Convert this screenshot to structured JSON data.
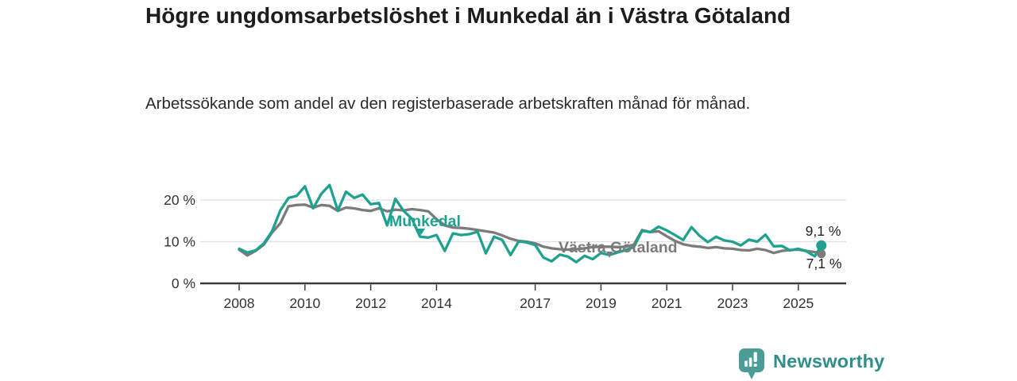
{
  "header": {
    "title": "Högre ungdomsarbetslöshet i Munkedal än i Västra Götaland",
    "subtitle": "Arbetssökande som andel av den registerbaserade arbetskraften månad för månad."
  },
  "footer": {
    "brand": "Newsworthy",
    "logo_icon": "bar-chart-badge-icon"
  },
  "colors": {
    "munkedal": "#1ea18f",
    "vastra_gotaland": "#7b7b7b",
    "grid": "#e0e0e0",
    "axis": "#3b3b3b",
    "tick_text": "#333333",
    "badge": "#4a9c96",
    "wordmark": "#2f8e89"
  },
  "chart_data": {
    "type": "line",
    "x_unit": "decimal_year",
    "ylim": [
      0,
      25
    ],
    "grid": true,
    "y_ticks": [
      "0 %",
      "10 %",
      "20 %"
    ],
    "y_tick_values": [
      0,
      10,
      20
    ],
    "x_ticks": [
      2008,
      2010,
      2012,
      2014,
      2017,
      2019,
      2021,
      2023,
      2025
    ],
    "x": [
      2008,
      2008.25,
      2008.5,
      2008.75,
      2009,
      2009.25,
      2009.5,
      2009.75,
      2010,
      2010.25,
      2010.5,
      2010.75,
      2011,
      2011.25,
      2011.5,
      2011.75,
      2012,
      2012.25,
      2012.5,
      2012.75,
      2013,
      2013.25,
      2013.5,
      2013.75,
      2014,
      2014.25,
      2014.5,
      2014.75,
      2015,
      2015.25,
      2015.5,
      2015.75,
      2016,
      2016.25,
      2016.5,
      2016.75,
      2017,
      2017.25,
      2017.5,
      2017.75,
      2018,
      2018.25,
      2018.5,
      2018.75,
      2019,
      2019.25,
      2019.5,
      2019.75,
      2020,
      2020.25,
      2020.5,
      2020.75,
      2021,
      2021.25,
      2021.5,
      2021.75,
      2022,
      2022.25,
      2022.5,
      2022.75,
      2023,
      2023.25,
      2023.5,
      2023.75,
      2024,
      2024.25,
      2024.5,
      2024.75,
      2025,
      2025.25,
      2025.5,
      2025.7
    ],
    "series": [
      {
        "name": "Munkedal",
        "color_key": "munkedal",
        "end_label": "9,1 %",
        "end_value": 9.1,
        "values": [
          8.3,
          7.4,
          7.9,
          9.6,
          12.5,
          17.5,
          20.5,
          21.0,
          23.3,
          18.0,
          21.5,
          23.6,
          17.5,
          22.0,
          20.5,
          21.3,
          19.0,
          19.3,
          13.9,
          20.3,
          17.4,
          15.5,
          11.2,
          11.0,
          11.6,
          7.8,
          12.0,
          11.6,
          11.8,
          12.4,
          7.2,
          11.2,
          10.4,
          6.8,
          10.1,
          9.8,
          9.2,
          6.2,
          5.3,
          6.9,
          6.4,
          5.1,
          6.6,
          5.8,
          7.3,
          6.8,
          7.4,
          8.0,
          8.7,
          12.6,
          12.3,
          13.6,
          12.7,
          11.6,
          10.4,
          13.5,
          11.4,
          9.9,
          11.2,
          10.3,
          10.0,
          9.1,
          10.5,
          10.0,
          11.7,
          8.9,
          9.0,
          7.9,
          8.3,
          7.7,
          6.5,
          9.1
        ]
      },
      {
        "name": "Västra Götaland",
        "color_key": "vastra_gotaland",
        "end_label": "7,1 %",
        "end_value": 7.1,
        "values": [
          8.1,
          6.7,
          7.8,
          9.3,
          12.2,
          14.4,
          18.5,
          18.8,
          18.9,
          18.2,
          18.8,
          18.6,
          17.4,
          18.2,
          18.0,
          17.6,
          17.4,
          18.0,
          17.3,
          17.7,
          17.5,
          17.8,
          17.6,
          17.3,
          15.4,
          13.9,
          13.4,
          13.3,
          13.1,
          12.8,
          12.5,
          12.2,
          11.5,
          10.7,
          10.2,
          10.0,
          9.6,
          8.8,
          8.4,
          8.2,
          8.1,
          8.2,
          8.4,
          8.7,
          8.8,
          8.8,
          8.7,
          8.8,
          9.3,
          12.8,
          12.3,
          12.5,
          11.3,
          10.2,
          9.4,
          9.0,
          8.8,
          8.5,
          8.7,
          8.4,
          8.3,
          8.0,
          7.9,
          8.3,
          8.0,
          7.3,
          7.8,
          8.0,
          8.1,
          7.8,
          7.5,
          7.1
        ]
      }
    ]
  }
}
